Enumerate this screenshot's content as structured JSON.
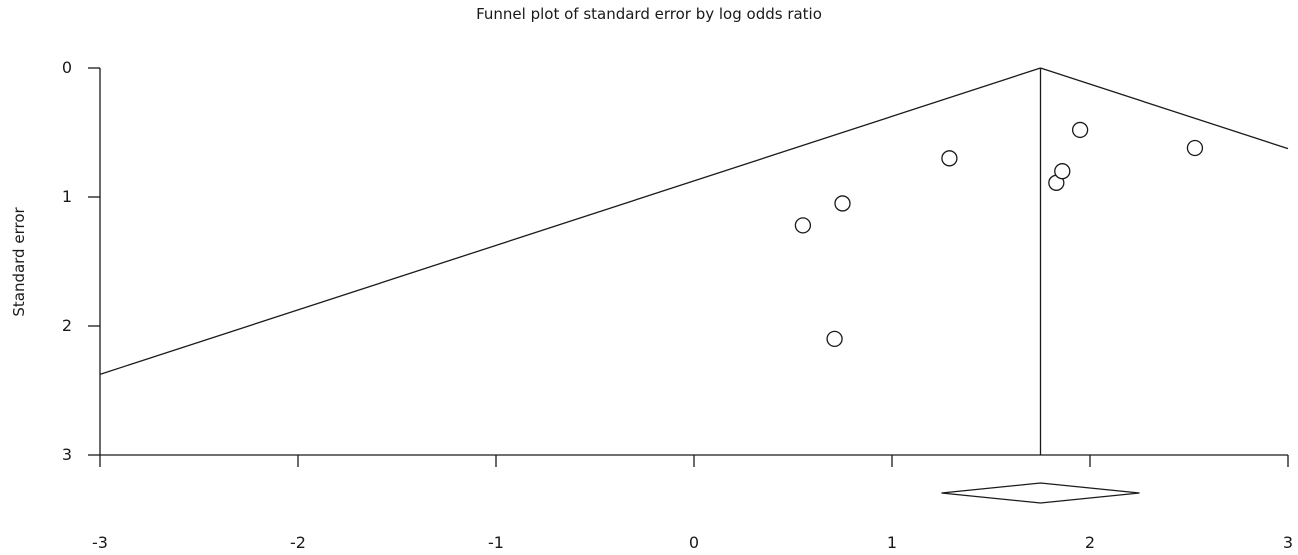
{
  "chart_data": {
    "type": "scatter",
    "title": "Funnel plot of standard error by log odds ratio",
    "xlabel": "",
    "ylabel": "Standard error",
    "xlim": [
      -3,
      3
    ],
    "ylim": [
      0,
      3
    ],
    "y_inverted": true,
    "x_ticks": [
      -3,
      -2,
      -1,
      0,
      1,
      2,
      3
    ],
    "y_ticks": [
      0,
      1,
      2,
      3
    ],
    "x_tick_labels": [
      "-3",
      "-2",
      "-1",
      "0",
      "1",
      "2",
      "3"
    ],
    "y_tick_labels": [
      "0",
      "1",
      "2",
      "3"
    ],
    "pooled_estimate": 1.75,
    "pooled_ci": [
      1.25,
      2.25
    ],
    "funnel_slope_se_per_unit": 0.5,
    "points": [
      {
        "x": 0.55,
        "y": 1.22
      },
      {
        "x": 0.75,
        "y": 1.05
      },
      {
        "x": 0.71,
        "y": 2.1
      },
      {
        "x": 1.29,
        "y": 0.7
      },
      {
        "x": 1.83,
        "y": 0.89
      },
      {
        "x": 1.86,
        "y": 0.8
      },
      {
        "x": 1.95,
        "y": 0.48
      },
      {
        "x": 2.53,
        "y": 0.62
      }
    ],
    "grid": false,
    "legend": "none"
  }
}
